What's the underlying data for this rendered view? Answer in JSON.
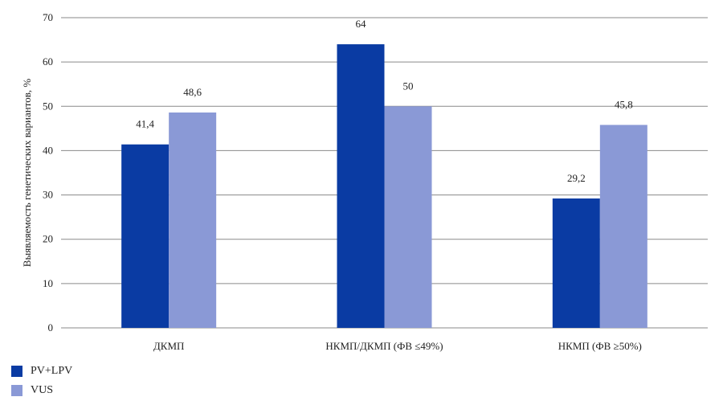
{
  "chart_data": {
    "type": "bar",
    "categories": [
      "ДКМП",
      "НКМП/ДКМП (ФВ ≤49%)",
      "НКМП (ФВ ≥50%)"
    ],
    "series": [
      {
        "name": "PV+LPV",
        "color": "#0a3ba3",
        "values": [
          41.4,
          64,
          29.2
        ],
        "labels": [
          "41,4",
          "64",
          "29,2"
        ]
      },
      {
        "name": "VUS",
        "color": "#8a99d6",
        "values": [
          48.6,
          50,
          45.8
        ],
        "labels": [
          "48,6",
          "50",
          "45,8"
        ]
      }
    ],
    "ylabel": "Выявляемость генетических вариантов, %",
    "xlabel": "",
    "ylim": [
      0,
      70
    ],
    "yticks": [
      0,
      10,
      20,
      30,
      40,
      50,
      60,
      70
    ],
    "grid": true,
    "legend_position": "bottom-left"
  }
}
